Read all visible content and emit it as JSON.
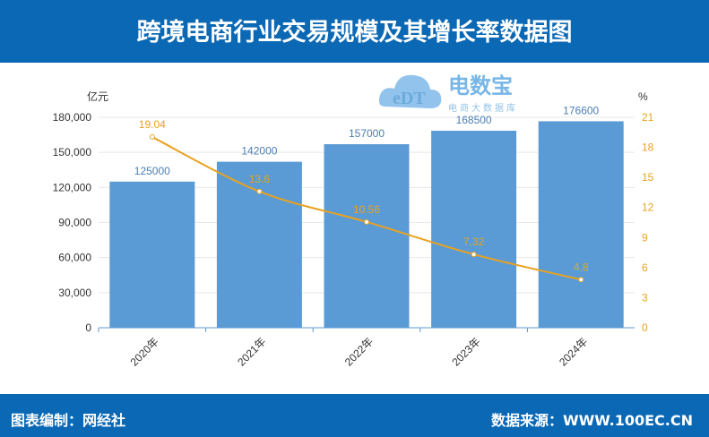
{
  "header": {
    "title": "跨境电商行业交易规模及其增长率数据图"
  },
  "footer": {
    "left": "图表编制：网经社",
    "right": "数据来源：WWW.100EC.CN"
  },
  "watermark": {
    "brand": "电数宝",
    "sub": "电商大数据库",
    "logo": "eDT"
  },
  "colors": {
    "bar": "#5b9bd5",
    "line": "#e8a21f",
    "header": "#0b68b4",
    "bar_label": "#4a7fb5"
  },
  "chart_data": {
    "type": "bar+line",
    "categories": [
      "2020年",
      "2021年",
      "2022年",
      "2023年",
      "2024年"
    ],
    "series": [
      {
        "type": "bar",
        "axis": "left",
        "values": [
          125000,
          142000,
          157000,
          168500,
          176600
        ]
      },
      {
        "type": "line",
        "axis": "right",
        "values": [
          19.04,
          13.6,
          10.56,
          7.32,
          4.8
        ]
      }
    ],
    "ylabel_left": "亿元",
    "ylabel_right": "%",
    "ylim_left": [
      0,
      180000
    ],
    "ylim_right": [
      0,
      21
    ],
    "yticks_left": [
      "0",
      "30,000",
      "60,000",
      "90,000",
      "120,000",
      "150,000",
      "180,000"
    ],
    "yticks_right": [
      "0",
      "3",
      "6",
      "9",
      "12",
      "15",
      "18",
      "21"
    ],
    "grid": true
  }
}
